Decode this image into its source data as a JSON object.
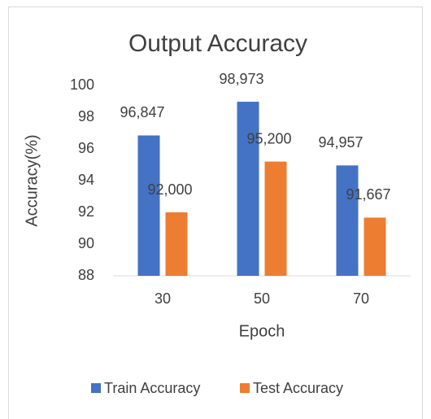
{
  "chart_data": {
    "type": "bar",
    "title": "Output Accuracy",
    "x_label": "Epoch",
    "y_label": "Accuracy(%)",
    "categories": [
      "30",
      "50",
      "70"
    ],
    "series": [
      {
        "name": "Train Accuracy",
        "color": "#4472c4",
        "values": [
          96.847,
          98.973,
          94.957
        ],
        "value_labels": [
          "96,847",
          "98,973",
          "94,957"
        ]
      },
      {
        "name": "Test Accuracy",
        "color": "#ed7d31",
        "values": [
          92.0,
          95.2,
          91.667
        ],
        "value_labels": [
          "92,000",
          "95,200",
          "91,667"
        ]
      }
    ],
    "ylim": [
      88,
      100
    ],
    "yticks": [
      88,
      90,
      92,
      94,
      96,
      98,
      100
    ],
    "grid": false,
    "legend": "bottom"
  }
}
